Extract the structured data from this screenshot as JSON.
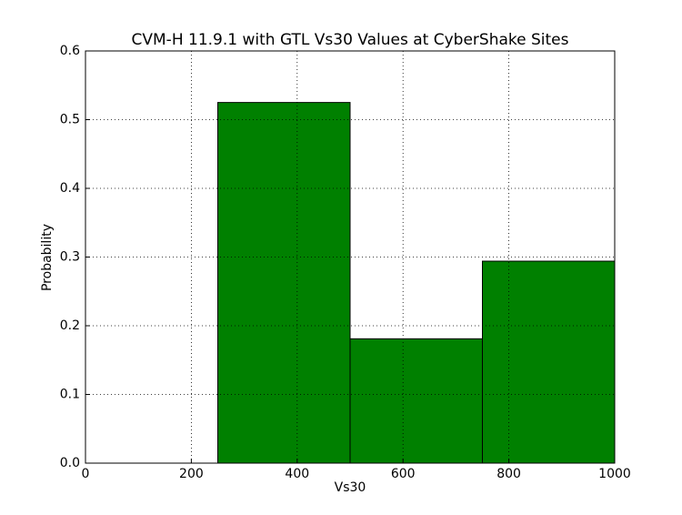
{
  "chart_data": {
    "type": "histogram",
    "title": "CVM-H 11.9.1 with GTL Vs30 Values at CyberShake Sites",
    "x_label": "Vs30",
    "y_label": "Probability",
    "bins": [
      0,
      250,
      500,
      750,
      1000
    ],
    "values": [
      0,
      0.525,
      0.181,
      0.294
    ],
    "color": "#008000",
    "xlim": [
      0,
      1000
    ],
    "ylim": [
      0,
      0.6
    ],
    "xticks": [
      0,
      200,
      400,
      600,
      800,
      1000
    ],
    "yticks": [
      {
        "value": 0,
        "label": "0.0"
      },
      0.1,
      0.2,
      0.3,
      0.4,
      0.5,
      0.6
    ],
    "grid": true
  }
}
